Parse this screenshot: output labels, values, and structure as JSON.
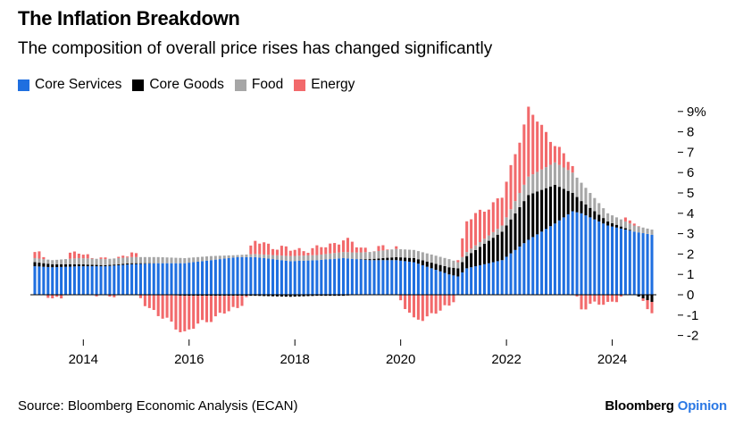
{
  "header": {
    "title": "The Inflation Breakdown",
    "subtitle": "The composition of overall price rises has changed significantly"
  },
  "legend": [
    {
      "label": "Core Services",
      "color": "#1f6fe0"
    },
    {
      "label": "Core Goods",
      "color": "#000000"
    },
    {
      "label": "Food",
      "color": "#a6a6a6"
    },
    {
      "label": "Energy",
      "color": "#f2696b"
    }
  ],
  "footer": {
    "source": "Source: Bloomberg Economic Analysis (ECAN)",
    "brand_main": "Bloomberg",
    "brand_accent": "Opinion"
  },
  "chart_data": {
    "type": "bar",
    "stacked": true,
    "title": "The Inflation Breakdown",
    "xlabel": "",
    "ylabel": "",
    "ylim": [
      -2,
      9
    ],
    "yticks": [
      -2,
      -1,
      0,
      1,
      2,
      3,
      4,
      5,
      6,
      7,
      8,
      9
    ],
    "ytick_labels": [
      "-2",
      "-1",
      "0",
      "1",
      "2",
      "3",
      "4",
      "5",
      "6",
      "7",
      "8",
      "9%"
    ],
    "xticks": [
      2014,
      2016,
      2018,
      2020,
      2022,
      2024
    ],
    "start": "2013-02",
    "frequency": "monthly",
    "series_names": [
      "Core Services",
      "Core Goods",
      "Food",
      "Energy"
    ],
    "anchors": [
      {
        "date": "2013-02",
        "cs": 1.4,
        "cg": 0.2,
        "food": 0.2,
        "en": 0.3
      },
      {
        "date": "2013-06",
        "cs": 1.35,
        "cg": 0.15,
        "food": 0.2,
        "en": -0.2
      },
      {
        "date": "2013-12",
        "cs": 1.4,
        "cg": 0.1,
        "food": 0.3,
        "en": 0.3
      },
      {
        "date": "2014-06",
        "cs": 1.4,
        "cg": 0.05,
        "food": 0.3,
        "en": -0.1
      },
      {
        "date": "2014-12",
        "cs": 1.5,
        "cg": 0.05,
        "food": 0.3,
        "en": 0.2
      },
      {
        "date": "2015-06",
        "cs": 1.55,
        "cg": 0.0,
        "food": 0.3,
        "en": -1.0
      },
      {
        "date": "2015-12",
        "cs": 1.55,
        "cg": -0.05,
        "food": 0.25,
        "en": -1.8
      },
      {
        "date": "2016-06",
        "cs": 1.7,
        "cg": -0.05,
        "food": 0.2,
        "en": -1.1
      },
      {
        "date": "2016-12",
        "cs": 1.85,
        "cg": -0.05,
        "food": 0.1,
        "en": -0.6
      },
      {
        "date": "2017-04",
        "cs": 1.85,
        "cg": -0.05,
        "food": 0.15,
        "en": 0.6
      },
      {
        "date": "2017-12",
        "cs": 1.65,
        "cg": -0.1,
        "food": 0.25,
        "en": 0.3
      },
      {
        "date": "2018-06",
        "cs": 1.7,
        "cg": -0.05,
        "food": 0.25,
        "en": 0.3
      },
      {
        "date": "2018-12",
        "cs": 1.8,
        "cg": -0.05,
        "food": 0.3,
        "en": 0.6
      },
      {
        "date": "2019-06",
        "cs": 1.7,
        "cg": 0.05,
        "food": 0.35,
        "en": 0.1
      },
      {
        "date": "2019-12",
        "cs": 1.7,
        "cg": 0.15,
        "food": 0.4,
        "en": 0.1
      },
      {
        "date": "2020-04",
        "cs": 1.6,
        "cg": 0.2,
        "food": 0.4,
        "en": -1.3
      },
      {
        "date": "2020-12",
        "cs": 1.0,
        "cg": 0.35,
        "food": 0.4,
        "en": -0.6
      },
      {
        "date": "2021-02",
        "cs": 0.9,
        "cg": 0.4,
        "food": 0.3,
        "en": 0.2
      },
      {
        "date": "2021-04",
        "cs": 1.3,
        "cg": 0.6,
        "food": 0.2,
        "en": 1.5
      },
      {
        "date": "2021-12",
        "cs": 1.7,
        "cg": 1.4,
        "food": 0.3,
        "en": 1.4
      },
      {
        "date": "2022-06",
        "cs": 2.7,
        "cg": 2.2,
        "food": 0.9,
        "en": 3.3
      },
      {
        "date": "2022-12",
        "cs": 3.5,
        "cg": 1.9,
        "food": 1.1,
        "en": 0.9
      },
      {
        "date": "2023-04",
        "cs": 4.1,
        "cg": 0.9,
        "food": 1.0,
        "en": 0.3
      },
      {
        "date": "2023-06",
        "cs": 4.0,
        "cg": 0.6,
        "food": 0.9,
        "en": -0.6
      },
      {
        "date": "2023-12",
        "cs": 3.4,
        "cg": 0.2,
        "food": 0.4,
        "en": -0.4
      },
      {
        "date": "2024-06",
        "cs": 3.1,
        "cg": 0.0,
        "food": 0.3,
        "en": 0.2
      },
      {
        "date": "2024-10",
        "cs": 2.95,
        "cg": -0.35,
        "food": 0.25,
        "en": -0.5
      }
    ]
  }
}
